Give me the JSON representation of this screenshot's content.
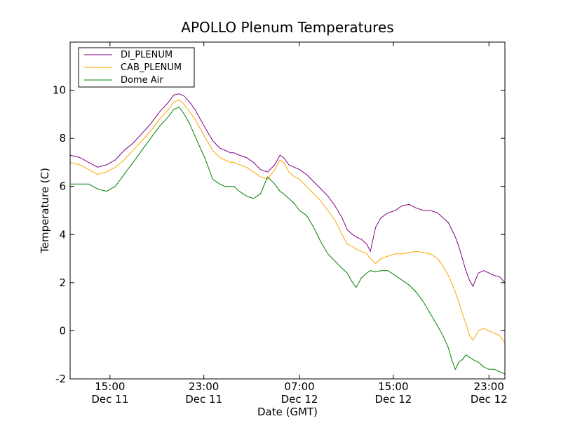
{
  "chart_data": {
    "type": "line",
    "title": "APOLLO Plenum Temperatures",
    "xlabel": "Date (GMT)",
    "ylabel": "Temperature (C)",
    "ylim": [
      -2,
      12
    ],
    "xlim": [
      11.25,
      35.8
    ],
    "grid": false,
    "legend_position": "top-left",
    "y_ticks": [
      -2,
      0,
      2,
      4,
      6,
      8,
      10
    ],
    "y_tick_labels": [
      "-2",
      "0",
      "2",
      "4",
      "6",
      "8",
      "10"
    ],
    "x_ticks": [
      {
        "value": 13.5,
        "time": "15:00",
        "date": "Dec 11"
      },
      {
        "value": 18.8,
        "time": "23:00",
        "date": "Dec 11"
      },
      {
        "value": 24.2,
        "time": "07:00",
        "date": "Dec 12"
      },
      {
        "value": 29.5,
        "time": "15:00",
        "date": "Dec 12"
      },
      {
        "value": 34.9,
        "time": "23:00",
        "date": "Dec 12"
      }
    ],
    "series": [
      {
        "name": "DI_PLENUM",
        "color": "#800080",
        "x": [
          11.25,
          11.8,
          12.3,
          12.8,
          13.3,
          13.8,
          14.3,
          14.8,
          15.3,
          15.8,
          16.3,
          16.8,
          17.1,
          17.4,
          17.7,
          18.0,
          18.3,
          18.6,
          18.9,
          19.3,
          19.7,
          20.0,
          20.3,
          20.5,
          20.8,
          21.2,
          21.6,
          22.0,
          22.4,
          22.8,
          23.1,
          23.3,
          23.6,
          23.9,
          24.2,
          24.6,
          25.0,
          25.4,
          25.8,
          26.2,
          26.6,
          26.9,
          27.2,
          27.4,
          27.7,
          28.0,
          28.2,
          28.5,
          28.8,
          29.2,
          29.6,
          30.0,
          30.4,
          30.8,
          31.2,
          31.6,
          32.0,
          32.3,
          32.6,
          32.8,
          33.0,
          33.2,
          33.4,
          33.6,
          33.8,
          34.0,
          34.3,
          34.6,
          34.9,
          35.2,
          35.5,
          35.8
        ],
        "y": [
          7.3,
          7.2,
          7.0,
          6.8,
          6.9,
          7.1,
          7.5,
          7.8,
          8.2,
          8.6,
          9.1,
          9.5,
          9.8,
          9.85,
          9.75,
          9.5,
          9.2,
          8.8,
          8.4,
          7.9,
          7.6,
          7.5,
          7.4,
          7.4,
          7.3,
          7.2,
          7.0,
          6.7,
          6.6,
          6.9,
          7.3,
          7.2,
          6.9,
          6.8,
          6.7,
          6.5,
          6.2,
          5.9,
          5.6,
          5.2,
          4.7,
          4.2,
          4.0,
          3.9,
          3.8,
          3.6,
          3.3,
          4.3,
          4.7,
          4.9,
          5.0,
          5.2,
          5.25,
          5.1,
          5.0,
          5.0,
          4.9,
          4.7,
          4.5,
          4.2,
          3.9,
          3.5,
          3.0,
          2.5,
          2.1,
          1.85,
          2.4,
          2.5,
          2.4,
          2.3,
          2.25,
          2.0
        ]
      },
      {
        "name": "CAB_PLENUM",
        "color": "#ffa500",
        "x": [
          11.25,
          11.8,
          12.3,
          12.8,
          13.3,
          13.8,
          14.3,
          14.8,
          15.3,
          15.8,
          16.3,
          16.8,
          17.1,
          17.4,
          17.7,
          18.0,
          18.3,
          18.6,
          18.9,
          19.3,
          19.7,
          20.0,
          20.3,
          20.5,
          20.8,
          21.2,
          21.6,
          22.0,
          22.4,
          22.8,
          23.1,
          23.3,
          23.6,
          23.9,
          24.2,
          24.6,
          25.0,
          25.4,
          25.8,
          26.2,
          26.6,
          26.9,
          27.2,
          27.4,
          27.7,
          28.0,
          28.2,
          28.5,
          28.8,
          29.2,
          29.6,
          30.0,
          30.4,
          30.8,
          31.2,
          31.6,
          32.0,
          32.3,
          32.6,
          32.8,
          33.0,
          33.2,
          33.4,
          33.6,
          33.8,
          34.0,
          34.3,
          34.6,
          34.9,
          35.2,
          35.5,
          35.8
        ],
        "y": [
          7.0,
          6.9,
          6.7,
          6.5,
          6.6,
          6.8,
          7.1,
          7.5,
          7.9,
          8.3,
          8.8,
          9.2,
          9.5,
          9.6,
          9.4,
          9.1,
          8.8,
          8.4,
          8.0,
          7.5,
          7.2,
          7.1,
          7.0,
          7.0,
          6.9,
          6.8,
          6.6,
          6.4,
          6.3,
          6.7,
          7.1,
          7.0,
          6.6,
          6.4,
          6.3,
          6.0,
          5.7,
          5.4,
          5.0,
          4.6,
          4.0,
          3.6,
          3.5,
          3.4,
          3.3,
          3.2,
          3.0,
          2.8,
          3.0,
          3.1,
          3.2,
          3.2,
          3.25,
          3.3,
          3.25,
          3.2,
          3.0,
          2.7,
          2.3,
          2.0,
          1.6,
          1.2,
          0.7,
          0.3,
          -0.2,
          -0.4,
          0.0,
          0.1,
          0.0,
          -0.1,
          -0.2,
          -0.5
        ]
      },
      {
        "name": "Dome Air",
        "color": "#008000",
        "x": [
          11.25,
          11.8,
          12.3,
          12.8,
          13.3,
          13.8,
          14.3,
          14.8,
          15.3,
          15.8,
          16.3,
          16.8,
          17.1,
          17.4,
          17.7,
          18.0,
          18.3,
          18.6,
          18.9,
          19.3,
          19.7,
          20.0,
          20.3,
          20.5,
          20.8,
          21.2,
          21.6,
          22.0,
          22.4,
          22.8,
          23.1,
          23.3,
          23.6,
          23.9,
          24.2,
          24.6,
          25.0,
          25.4,
          25.8,
          26.2,
          26.6,
          26.9,
          27.2,
          27.4,
          27.7,
          28.0,
          28.2,
          28.5,
          28.8,
          29.2,
          29.6,
          30.0,
          30.4,
          30.8,
          31.2,
          31.6,
          32.0,
          32.3,
          32.6,
          32.8,
          33.0,
          33.2,
          33.4,
          33.6,
          33.8,
          34.0,
          34.3,
          34.6,
          34.9,
          35.2,
          35.5,
          35.8
        ],
        "y": [
          6.1,
          6.1,
          6.1,
          5.9,
          5.8,
          6.0,
          6.5,
          7.0,
          7.5,
          8.0,
          8.5,
          8.9,
          9.2,
          9.3,
          9.0,
          8.6,
          8.1,
          7.6,
          7.1,
          6.3,
          6.1,
          6.0,
          6.0,
          6.0,
          5.8,
          5.6,
          5.5,
          5.7,
          6.4,
          6.1,
          5.8,
          5.7,
          5.5,
          5.3,
          5.0,
          4.8,
          4.3,
          3.7,
          3.2,
          2.9,
          2.6,
          2.4,
          2.0,
          1.8,
          2.2,
          2.4,
          2.5,
          2.45,
          2.5,
          2.5,
          2.3,
          2.1,
          1.9,
          1.6,
          1.2,
          0.7,
          0.2,
          -0.2,
          -0.7,
          -1.2,
          -1.6,
          -1.3,
          -1.2,
          -1.0,
          -1.1,
          -1.2,
          -1.3,
          -1.5,
          -1.6,
          -1.6,
          -1.7,
          -1.8
        ]
      }
    ]
  }
}
